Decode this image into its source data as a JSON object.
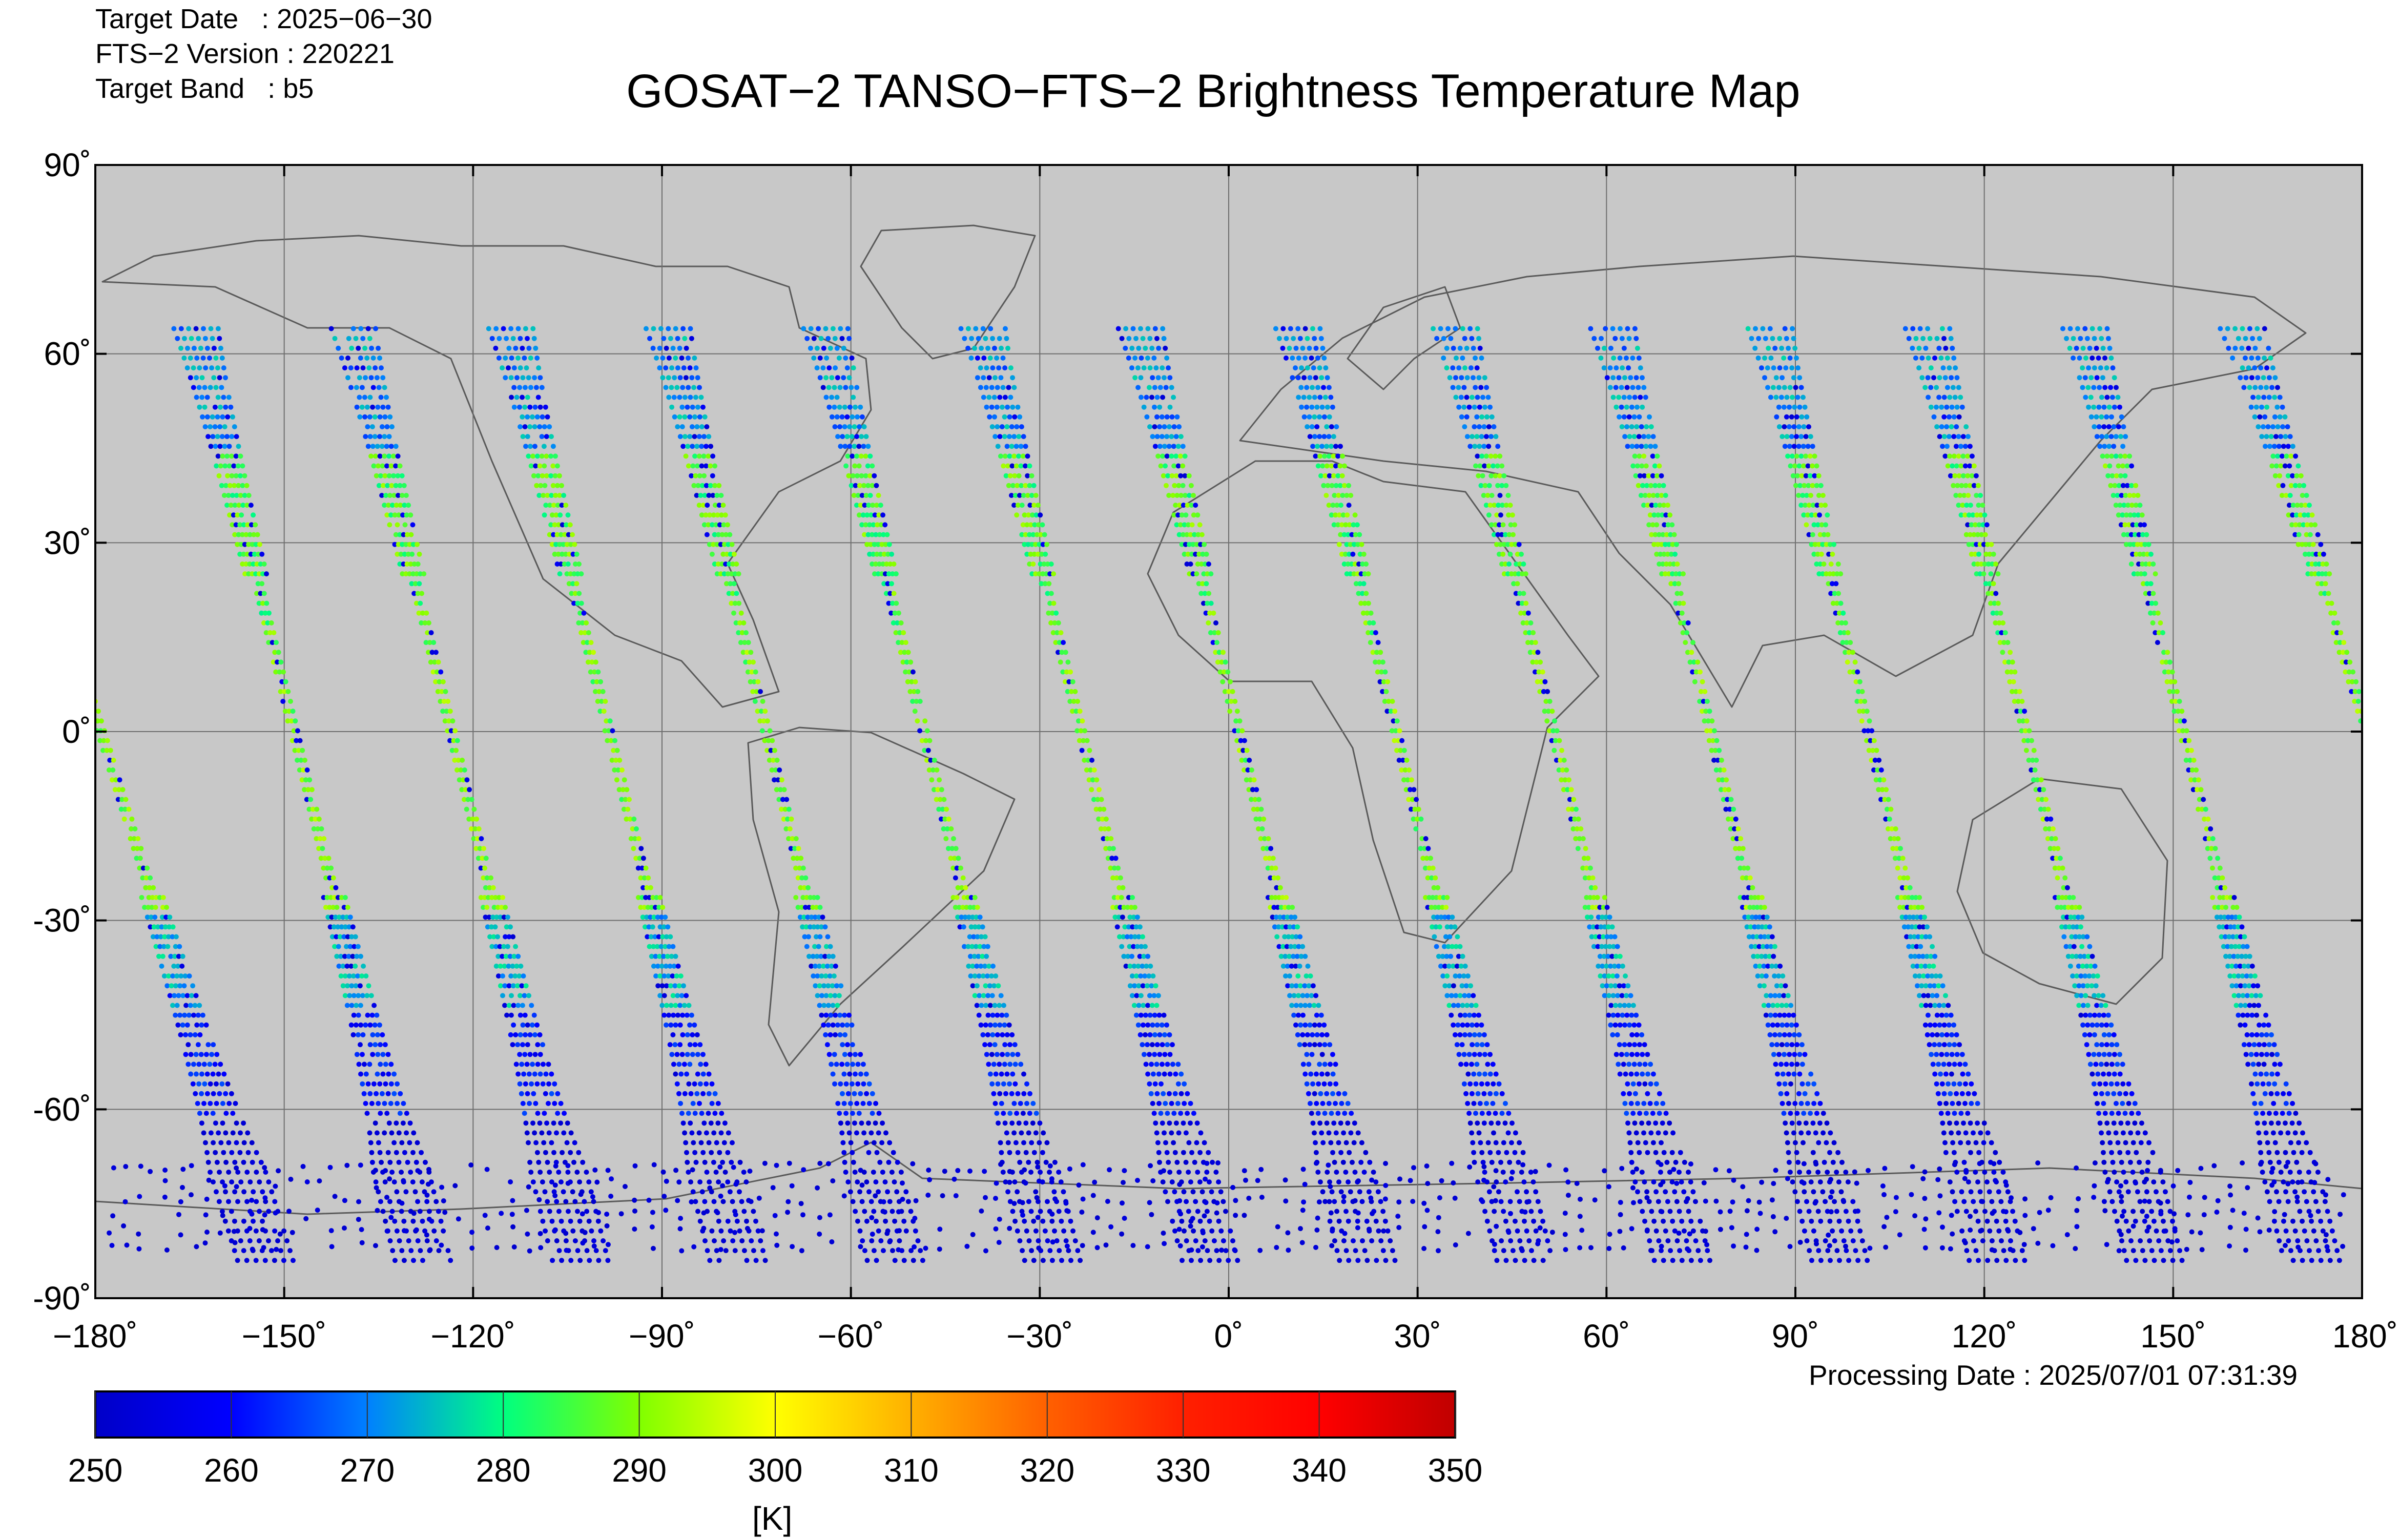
{
  "header": {
    "target_date": "Target Date   : 2025−06−30",
    "fts_version": "FTS−2 Version : 220221",
    "target_band": "Target Band   : b5"
  },
  "title": "GOSAT−2 TANSO−FTS−2 Brightness Temperature Map",
  "processing_date": "Processing Date : 2025/07/01 07:31:39",
  "colors": {
    "map_background": "#c8c8c8",
    "gridline": "#6e6e6e",
    "coastline": "#5a5a5a",
    "colormap": [
      "#0000c8",
      "#0000ff",
      "#0080ff",
      "#00ff80",
      "#80ff00",
      "#ffff00",
      "#ffb000",
      "#ff6000",
      "#ff0000",
      "#c00000"
    ]
  },
  "chart_data": {
    "type": "scatter",
    "projection": "equirectangular",
    "xlim": [
      -180,
      180
    ],
    "ylim": [
      -90,
      90
    ],
    "grid": true,
    "x_ticks": [
      -180,
      -150,
      -120,
      -90,
      -60,
      -30,
      0,
      30,
      60,
      90,
      120,
      150,
      180
    ],
    "x_tick_labels": [
      "−180˚",
      "−150˚",
      "−120˚",
      "−90˚",
      "−60˚",
      "−30˚",
      "0˚",
      "30˚",
      "60˚",
      "90˚",
      "120˚",
      "150˚",
      "180˚"
    ],
    "y_ticks": [
      90,
      60,
      30,
      0,
      -30,
      -60,
      -90
    ],
    "y_tick_labels": [
      "90˚",
      "60˚",
      "30˚",
      "0˚",
      "-30˚",
      "-60˚",
      "-90˚"
    ],
    "colorbar": {
      "min": 250,
      "max": 350,
      "ticks": [
        250,
        260,
        270,
        280,
        290,
        300,
        310,
        320,
        330,
        340,
        350
      ],
      "unit": "[K]"
    },
    "tracks": [
      {
        "lon0": -78,
        "lat0": -84,
        "lon1": -114,
        "lat1": 64,
        "orientation": "descending"
      },
      {
        "lon0": -53,
        "lat0": -84,
        "lon1": -89,
        "lat1": 64,
        "orientation": "descending"
      },
      {
        "lon0": -28,
        "lat0": -84,
        "lon1": -64,
        "lat1": 64,
        "orientation": "descending"
      },
      {
        "lon0": -3,
        "lat0": -84,
        "lon1": -39,
        "lat1": 64,
        "orientation": "descending"
      },
      {
        "lon0": 22,
        "lat0": -84,
        "lon1": -14,
        "lat1": 64,
        "orientation": "descending"
      },
      {
        "lon0": 47,
        "lat0": -84,
        "lon1": 11,
        "lat1": 64,
        "orientation": "descending"
      },
      {
        "lon0": 72,
        "lat0": -84,
        "lon1": 36,
        "lat1": 64,
        "orientation": "descending"
      },
      {
        "lon0": 97,
        "lat0": -84,
        "lon1": 61,
        "lat1": 64,
        "orientation": "descending"
      },
      {
        "lon0": 122,
        "lat0": -84,
        "lon1": 86,
        "lat1": 64,
        "orientation": "descending"
      },
      {
        "lon0": 147,
        "lat0": -84,
        "lon1": 111,
        "lat1": 64,
        "orientation": "descending"
      },
      {
        "lon0": 172,
        "lat0": -84,
        "lon1": 136,
        "lat1": 64,
        "orientation": "descending"
      },
      {
        "lon0": -153,
        "lat0": -84,
        "lon1": 161,
        "lat1": 64,
        "orientation": "descending"
      },
      {
        "lon0": -128,
        "lat0": -84,
        "lon1": -164,
        "lat1": 64,
        "orientation": "descending"
      },
      {
        "lon0": -103,
        "lat0": -84,
        "lon1": -139,
        "lat1": 64,
        "orientation": "descending"
      }
    ]
  }
}
